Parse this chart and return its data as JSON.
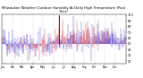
{
  "title": "Milwaukee Weather Outdoor Humidity At Daily High Temperature (Past Year)",
  "ylim": [
    15,
    102
  ],
  "yticks": [
    20,
    30,
    40,
    50,
    60,
    70,
    80,
    90,
    100
  ],
  "ytick_labels": [
    "20",
    "30",
    "40",
    "50",
    "60",
    "70",
    "80",
    "90",
    "100"
  ],
  "num_points": 365,
  "background_color": "#ffffff",
  "grid_color": "#bbbbbb",
  "spike_color_blue": "#0000dd",
  "spike_color_red": "#dd0000",
  "seed": 42,
  "month_positions": [
    0,
    31,
    59,
    90,
    120,
    151,
    181,
    212,
    243,
    273,
    304,
    334
  ],
  "month_labels": [
    "Jan",
    "Feb",
    "Mar",
    "Apr",
    "May",
    "Jun",
    "Jul",
    "Aug",
    "Sep",
    "Oct",
    "Nov",
    "Dec"
  ],
  "big_spike_day": 168,
  "mid_spike_day": 195
}
